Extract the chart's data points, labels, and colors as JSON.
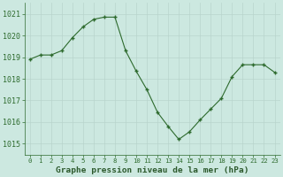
{
  "x": [
    0,
    1,
    2,
    3,
    4,
    5,
    6,
    7,
    8,
    9,
    10,
    11,
    12,
    13,
    14,
    15,
    16,
    17,
    18,
    19,
    20,
    21,
    22,
    23
  ],
  "y": [
    1018.9,
    1019.1,
    1019.1,
    1019.3,
    1019.9,
    1020.4,
    1020.75,
    1020.85,
    1020.85,
    1019.3,
    1018.35,
    1017.5,
    1016.45,
    1015.8,
    1015.2,
    1015.55,
    1016.1,
    1016.6,
    1017.1,
    1018.1,
    1018.65,
    1018.65,
    1018.65,
    1018.3
  ],
  "xlim": [
    -0.5,
    23.5
  ],
  "ylim": [
    1014.5,
    1021.5
  ],
  "yticks": [
    1015,
    1016,
    1017,
    1018,
    1019,
    1020,
    1021
  ],
  "xticks": [
    0,
    1,
    2,
    3,
    4,
    5,
    6,
    7,
    8,
    9,
    10,
    11,
    12,
    13,
    14,
    15,
    16,
    17,
    18,
    19,
    20,
    21,
    22,
    23
  ],
  "xlabel": "Graphe pression niveau de la mer (hPa)",
  "line_color": "#2d6a2d",
  "marker_color": "#2d6a2d",
  "bg_color": "#cce8e0",
  "grid_color": "#b8d4cc",
  "xlabel_color": "#2d5a2d",
  "tick_color": "#2d6a2d",
  "ytick_fontsize": 6.0,
  "xtick_fontsize": 5.2,
  "xlabel_fontsize": 6.8
}
